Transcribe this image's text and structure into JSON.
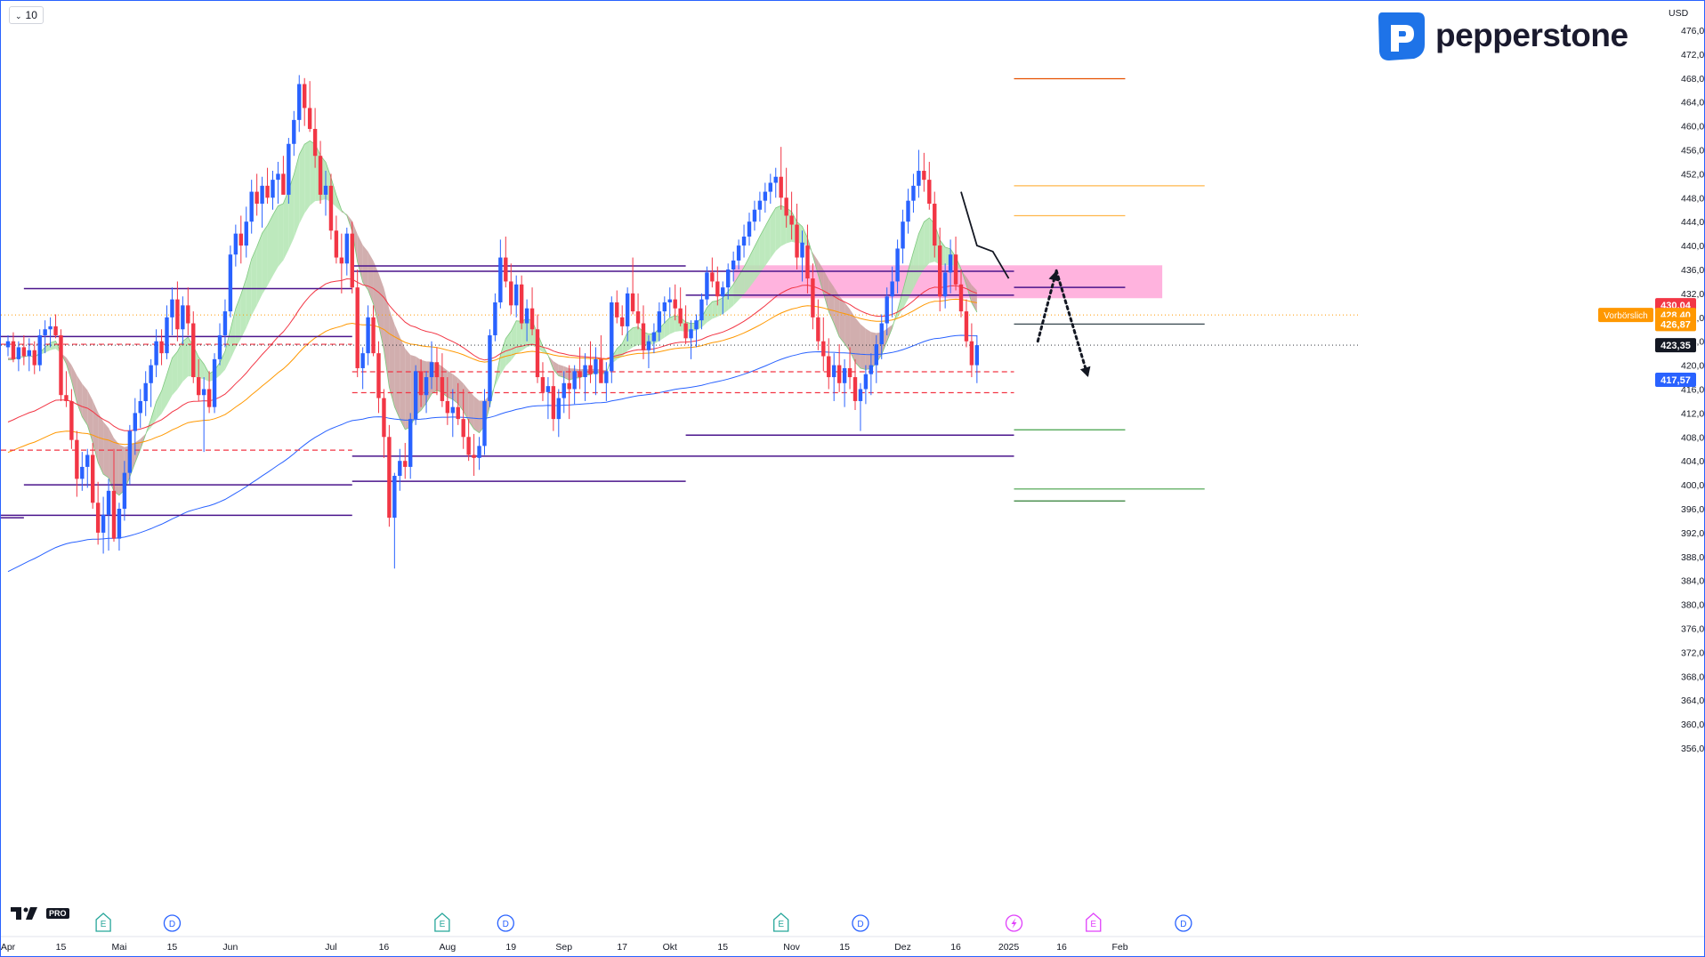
{
  "toolbar": {
    "interval_label": "10"
  },
  "brand": {
    "name": "pepperstone"
  },
  "watermark": {
    "name": "TV",
    "badge": "PRO"
  },
  "price_axis": {
    "currency": "USD",
    "range": [
      352,
      478
    ],
    "ticks": [
      "476,00",
      "472,00",
      "468,00",
      "464,00",
      "460,00",
      "456,00",
      "452,00",
      "448,00",
      "444,00",
      "440,00",
      "436,00",
      "432,00",
      "428,00",
      "424,00",
      "420,00",
      "416,00",
      "412,00",
      "408,00",
      "404,00",
      "400,00",
      "396,00",
      "392,00",
      "388,00",
      "384,00",
      "380,00",
      "376,00",
      "372,00",
      "368,00",
      "364,00",
      "360,00",
      "356,00"
    ]
  },
  "time_axis": {
    "labels": [
      {
        "text": "Apr",
        "i": 0
      },
      {
        "text": "15",
        "i": 10
      },
      {
        "text": "Mai",
        "i": 21
      },
      {
        "text": "15",
        "i": 31
      },
      {
        "text": "Jun",
        "i": 42
      },
      {
        "text": "Jul",
        "i": 61
      },
      {
        "text": "16",
        "i": 71
      },
      {
        "text": "Aug",
        "i": 83
      },
      {
        "text": "19",
        "i": 95
      },
      {
        "text": "Sep",
        "i": 105
      },
      {
        "text": "17",
        "i": 116
      },
      {
        "text": "Okt",
        "i": 125
      },
      {
        "text": "15",
        "i": 135
      },
      {
        "text": "Nov",
        "i": 148
      },
      {
        "text": "15",
        "i": 158
      },
      {
        "text": "Dez",
        "i": 169
      },
      {
        "text": "16",
        "i": 179
      },
      {
        "text": "2025",
        "i": 189
      },
      {
        "text": "16",
        "i": 199
      },
      {
        "text": "Feb",
        "i": 210
      }
    ],
    "events": [
      {
        "type": "E",
        "i": 18,
        "color": "#26a69a"
      },
      {
        "type": "D",
        "i": 31,
        "color": "#2962ff"
      },
      {
        "type": "E",
        "i": 82,
        "color": "#26a69a"
      },
      {
        "type": "D",
        "i": 94,
        "color": "#2962ff"
      },
      {
        "type": "E",
        "i": 146,
        "color": "#26a69a"
      },
      {
        "type": "D",
        "i": 161,
        "color": "#2962ff"
      },
      {
        "type": "bolt",
        "i": 190,
        "color": "#e040fb"
      },
      {
        "type": "E",
        "i": 205,
        "color": "#e040fb"
      },
      {
        "type": "D",
        "i": 222,
        "color": "#2962ff"
      }
    ]
  },
  "price_badges": [
    {
      "price": 430.04,
      "text": "430,04",
      "bg": "#f23645"
    },
    {
      "price": 428.4,
      "text": "428,40",
      "bg": "#ff9800",
      "label": "Vorbörslich"
    },
    {
      "price": 426.87,
      "text": "426,87",
      "bg": "#ff9800"
    },
    {
      "price": 423.35,
      "text": "423,35",
      "bg": "#131722"
    },
    {
      "price": 417.57,
      "text": "417,57",
      "bg": "#2962ff"
    }
  ],
  "colors": {
    "up": "#2962ff",
    "down": "#f23645",
    "ema_fast": "#f23645",
    "ema_mid": "#ff9800",
    "ema_slow": "#2962ff",
    "level": "#4a148c",
    "zone": "#ff80c8",
    "cloud_up": "#b2e5b2",
    "cloud_down": "#c9a0a0"
  },
  "annotations": {
    "levels": [
      {
        "price": 432.8,
        "i0": 3,
        "i1": 65
      },
      {
        "price": 424.8,
        "i0": -5,
        "i1": 65
      },
      {
        "price": 400.0,
        "i0": 3,
        "i1": 65
      },
      {
        "price": 394.9,
        "i0": -5,
        "i1": 65
      },
      {
        "price": 394.5,
        "i0": -5,
        "i1": 3
      },
      {
        "price": 436.6,
        "i0": 65,
        "i1": 128
      },
      {
        "price": 435.7,
        "i0": 65,
        "i1": 190
      },
      {
        "price": 404.8,
        "i0": 65,
        "i1": 190
      },
      {
        "price": 400.6,
        "i0": 65,
        "i1": 128
      },
      {
        "price": 431.7,
        "i0": 128,
        "i1": 190
      },
      {
        "price": 408.3,
        "i0": 128,
        "i1": 190
      },
      {
        "price": 433.0,
        "i0": 190,
        "i1": 211
      },
      {
        "price": 426.87,
        "i0": 190,
        "i1": 226
      }
    ],
    "dashed_levels": [
      {
        "price": 423.5,
        "i0": -5,
        "i1": 65
      },
      {
        "price": 405.8,
        "i0": -5,
        "i1": 65
      },
      {
        "price": 418.9,
        "i0": 65,
        "i1": 190
      },
      {
        "price": 415.4,
        "i0": 65,
        "i1": 190
      }
    ],
    "dotted_levels": [
      {
        "price": 428.4,
        "i0": -5,
        "i1": 226
      }
    ],
    "zone": {
      "p_top": 436.7,
      "p_bot": 431.2,
      "i0": 137,
      "i1": 218
    },
    "target_lines": [
      {
        "price": 467.9,
        "i0": 190,
        "i1": 211,
        "color": "#e65100"
      },
      {
        "price": 450.0,
        "i0": 190,
        "i1": 226,
        "color": "#ffb74d"
      },
      {
        "price": 445.0,
        "i0": 190,
        "i1": 211,
        "color": "#ffb74d"
      },
      {
        "price": 409.2,
        "i0": 190,
        "i1": 211,
        "color": "#43a047"
      },
      {
        "price": 399.3,
        "i0": 190,
        "i1": 226,
        "color": "#43a047"
      },
      {
        "price": 397.3,
        "i0": 190,
        "i1": 211,
        "color": "#2e7d32"
      }
    ],
    "projection": [
      [
        194.5,
        424.0
      ],
      [
        198.0,
        435.8
      ],
      [
        204.0,
        418.0
      ]
    ]
  },
  "chart_data": {
    "type": "candlestick",
    "title": "",
    "ylim": [
      352,
      478
    ],
    "candles": [
      [
        423.0,
        425.0,
        421.5,
        424.0
      ],
      [
        424.0,
        425.5,
        420.5,
        421.0
      ],
      [
        421.0,
        424.0,
        419.0,
        423.0
      ],
      [
        423.0,
        425.0,
        420.0,
        421.5
      ],
      [
        421.5,
        424.5,
        419.0,
        422.5
      ],
      [
        422.5,
        424.0,
        418.5,
        420.0
      ],
      [
        420.0,
        426.0,
        419.0,
        425.0
      ],
      [
        425.0,
        427.5,
        422.0,
        426.0
      ],
      [
        426.0,
        428.0,
        423.0,
        426.5
      ],
      [
        426.5,
        428.5,
        424.5,
        425.0
      ],
      [
        425.0,
        426.0,
        414.0,
        415.0
      ],
      [
        415.0,
        419.0,
        413.0,
        414.0
      ],
      [
        414.0,
        416.0,
        406.0,
        407.5
      ],
      [
        407.5,
        409.0,
        398.0,
        401.0
      ],
      [
        401.0,
        405.5,
        399.0,
        403.0
      ],
      [
        403.0,
        406.0,
        399.5,
        405.0
      ],
      [
        405.0,
        407.0,
        396.0,
        397.0
      ],
      [
        397.0,
        400.5,
        390.0,
        392.0
      ],
      [
        392.0,
        398.0,
        388.5,
        395.0
      ],
      [
        395.0,
        401.0,
        389.0,
        399.0
      ],
      [
        399.0,
        406.0,
        390.5,
        391.0
      ],
      [
        391.0,
        397.0,
        389.0,
        396.0
      ],
      [
        396.0,
        404.0,
        394.0,
        402.0
      ],
      [
        402.0,
        410.0,
        400.0,
        409.0
      ],
      [
        409.0,
        414.5,
        405.0,
        412.0
      ],
      [
        412.0,
        416.0,
        409.5,
        414.0
      ],
      [
        414.0,
        419.0,
        411.5,
        417.0
      ],
      [
        417.0,
        421.0,
        413.0,
        420.0
      ],
      [
        420.0,
        426.0,
        418.0,
        424.0
      ],
      [
        424.0,
        426.0,
        420.0,
        422.0
      ],
      [
        422.0,
        430.0,
        421.0,
        428.0
      ],
      [
        428.0,
        433.0,
        425.0,
        431.0
      ],
      [
        431.0,
        434.0,
        424.0,
        426.0
      ],
      [
        426.0,
        431.5,
        423.5,
        430.0
      ],
      [
        430.0,
        433.0,
        425.0,
        427.0
      ],
      [
        427.0,
        429.0,
        417.0,
        418.0
      ],
      [
        418.0,
        421.0,
        414.0,
        415.0
      ],
      [
        415.0,
        418.0,
        405.5,
        416.0
      ],
      [
        416.0,
        419.0,
        412.0,
        413.0
      ],
      [
        413.0,
        422.0,
        412.0,
        421.0
      ],
      [
        421.0,
        427.0,
        420.0,
        425.0
      ],
      [
        425.0,
        431.0,
        423.0,
        429.0
      ],
      [
        429.0,
        440.0,
        428.0,
        438.5
      ],
      [
        438.5,
        443.5,
        436.5,
        442.0
      ],
      [
        442.0,
        445.0,
        437.0,
        440.0
      ],
      [
        440.0,
        446.5,
        438.0,
        444.0
      ],
      [
        444.0,
        451.0,
        442.0,
        449.0
      ],
      [
        449.0,
        452.0,
        445.0,
        447.0
      ],
      [
        447.0,
        451.5,
        443.0,
        450.0
      ],
      [
        450.0,
        453.0,
        447.0,
        448.0
      ],
      [
        448.0,
        452.5,
        446.0,
        451.0
      ],
      [
        451.0,
        454.0,
        447.0,
        452.0
      ],
      [
        452.0,
        455.0,
        449.0,
        448.5
      ],
      [
        448.5,
        458.0,
        447.0,
        457.0
      ],
      [
        457.0,
        462.5,
        455.0,
        461.0
      ],
      [
        461.0,
        468.5,
        459.0,
        467.0
      ],
      [
        467.0,
        468.0,
        460.0,
        463.0
      ],
      [
        463.0,
        467.5,
        459.0,
        459.5
      ],
      [
        459.5,
        463.0,
        453.0,
        455.0
      ],
      [
        455.0,
        457.5,
        447.0,
        448.5
      ],
      [
        448.5,
        452.5,
        445.0,
        450.0
      ],
      [
        450.0,
        452.0,
        441.0,
        442.5
      ],
      [
        442.5,
        445.0,
        437.0,
        438.0
      ],
      [
        438.0,
        442.0,
        432.0,
        437.0
      ],
      [
        437.0,
        443.0,
        435.0,
        442.0
      ],
      [
        442.0,
        444.0,
        432.0,
        433.0
      ],
      [
        433.0,
        436.0,
        418.0,
        419.5
      ],
      [
        419.5,
        423.0,
        416.0,
        422.0
      ],
      [
        422.0,
        430.0,
        420.0,
        428.0
      ],
      [
        428.0,
        430.0,
        421.5,
        422.0
      ],
      [
        422.0,
        424.0,
        412.0,
        414.5
      ],
      [
        414.5,
        416.0,
        404.5,
        408.0
      ],
      [
        408.0,
        410.0,
        393.0,
        394.5
      ],
      [
        394.5,
        402.0,
        386.0,
        401.5
      ],
      [
        401.5,
        406.0,
        399.0,
        404.0
      ],
      [
        404.0,
        407.0,
        401.0,
        403.0
      ],
      [
        403.0,
        412.0,
        401.0,
        411.0
      ],
      [
        411.0,
        420.0,
        410.0,
        419.0
      ],
      [
        419.0,
        421.0,
        413.0,
        415.0
      ],
      [
        415.0,
        419.0,
        412.0,
        418.0
      ],
      [
        418.0,
        424.0,
        416.0,
        420.5
      ],
      [
        420.5,
        423.0,
        415.0,
        418.0
      ],
      [
        418.0,
        422.0,
        413.0,
        414.0
      ],
      [
        414.0,
        418.0,
        410.0,
        412.0
      ],
      [
        412.0,
        416.0,
        408.0,
        413.0
      ],
      [
        413.0,
        417.0,
        410.0,
        411.0
      ],
      [
        411.0,
        416.0,
        406.0,
        408.0
      ],
      [
        408.0,
        411.0,
        404.0,
        405.0
      ],
      [
        405.0,
        408.5,
        401.5,
        404.5
      ],
      [
        404.5,
        408.0,
        402.5,
        406.5
      ],
      [
        406.5,
        416.0,
        405.0,
        414.0
      ],
      [
        414.0,
        426.0,
        413.0,
        425.0
      ],
      [
        425.0,
        432.0,
        424.0,
        430.5
      ],
      [
        430.5,
        441.0,
        429.5,
        438.0
      ],
      [
        438.0,
        441.5,
        433.0,
        434.0
      ],
      [
        434.0,
        437.0,
        428.5,
        430.0
      ],
      [
        430.0,
        435.0,
        428.0,
        433.5
      ],
      [
        433.5,
        435.0,
        426.0,
        427.0
      ],
      [
        427.0,
        431.0,
        424.0,
        429.5
      ],
      [
        429.5,
        433.0,
        425.0,
        426.0
      ],
      [
        426.0,
        428.5,
        417.0,
        418.0
      ],
      [
        418.0,
        420.5,
        414.0,
        415.5
      ],
      [
        415.5,
        418.0,
        411.0,
        416.5
      ],
      [
        416.5,
        419.0,
        409.0,
        411.0
      ],
      [
        411.0,
        416.0,
        408.0,
        414.5
      ],
      [
        414.5,
        419.0,
        412.0,
        417.0
      ],
      [
        417.0,
        420.0,
        411.0,
        416.0
      ],
      [
        416.0,
        420.0,
        413.5,
        419.0
      ],
      [
        419.0,
        423.0,
        416.0,
        418.0
      ],
      [
        418.0,
        422.0,
        414.0,
        420.0
      ],
      [
        420.0,
        424.0,
        417.0,
        418.5
      ],
      [
        418.5,
        423.0,
        415.0,
        421.0
      ],
      [
        421.0,
        425.0,
        418.0,
        417.0
      ],
      [
        417.0,
        420.5,
        414.0,
        419.0
      ],
      [
        419.0,
        431.5,
        417.0,
        430.5
      ],
      [
        430.5,
        432.5,
        427.0,
        428.0
      ],
      [
        428.0,
        430.0,
        425.0,
        426.5
      ],
      [
        426.5,
        433.0,
        424.0,
        432.0
      ],
      [
        432.0,
        438.0,
        428.5,
        429.0
      ],
      [
        429.0,
        432.0,
        426.0,
        427.0
      ],
      [
        427.0,
        430.0,
        421.0,
        422.5
      ],
      [
        422.5,
        425.0,
        419.5,
        424.0
      ],
      [
        424.0,
        427.0,
        422.0,
        425.5
      ],
      [
        425.5,
        430.5,
        424.0,
        429.0
      ],
      [
        429.0,
        431.5,
        427.0,
        430.5
      ],
      [
        430.5,
        433.0,
        428.0,
        431.0
      ],
      [
        431.0,
        433.5,
        427.5,
        429.5
      ],
      [
        429.5,
        433.0,
        426.5,
        427.0
      ],
      [
        427.0,
        430.0,
        423.5,
        424.5
      ],
      [
        424.5,
        427.5,
        421.0,
        426.0
      ],
      [
        426.0,
        428.5,
        423.0,
        427.5
      ],
      [
        427.5,
        432.0,
        426.0,
        431.0
      ],
      [
        431.0,
        436.5,
        430.0,
        435.5
      ],
      [
        435.5,
        438.0,
        433.0,
        434.0
      ],
      [
        434.0,
        436.5,
        430.0,
        431.5
      ],
      [
        431.5,
        434.0,
        428.5,
        433.0
      ],
      [
        433.0,
        437.0,
        431.0,
        436.0
      ],
      [
        436.0,
        439.0,
        434.0,
        437.5
      ],
      [
        437.5,
        441.0,
        436.0,
        440.0
      ],
      [
        440.0,
        443.5,
        438.0,
        441.5
      ],
      [
        441.5,
        445.5,
        440.0,
        444.0
      ],
      [
        444.0,
        447.5,
        442.5,
        446.0
      ],
      [
        446.0,
        449.0,
        444.0,
        447.5
      ],
      [
        447.5,
        450.5,
        445.5,
        449.0
      ],
      [
        449.0,
        452.0,
        447.0,
        450.5
      ],
      [
        450.5,
        453.0,
        448.0,
        451.5
      ],
      [
        451.5,
        456.5,
        446.0,
        448.0
      ],
      [
        448.0,
        453.0,
        443.0,
        445.0
      ],
      [
        445.0,
        449.0,
        441.0,
        443.5
      ],
      [
        443.5,
        447.0,
        436.0,
        438.0
      ],
      [
        438.0,
        442.5,
        434.0,
        440.5
      ],
      [
        440.0,
        443.5,
        432.0,
        434.5
      ],
      [
        434.5,
        437.0,
        426.0,
        428.0
      ],
      [
        428.0,
        431.0,
        422.5,
        424.0
      ],
      [
        424.0,
        428.0,
        419.0,
        421.5
      ],
      [
        421.5,
        424.5,
        416.0,
        418.0
      ],
      [
        418.0,
        422.0,
        414.0,
        420.0
      ],
      [
        420.0,
        423.5,
        415.5,
        417.0
      ],
      [
        417.0,
        421.0,
        413.0,
        419.5
      ],
      [
        419.5,
        423.0,
        416.0,
        418.0
      ],
      [
        418.0,
        421.0,
        412.5,
        414.0
      ],
      [
        414.0,
        417.0,
        409.0,
        416.0
      ],
      [
        416.0,
        420.0,
        413.5,
        418.5
      ],
      [
        418.5,
        422.0,
        415.0,
        420.0
      ],
      [
        420.0,
        425.0,
        417.0,
        423.5
      ],
      [
        423.5,
        428.5,
        421.0,
        427.0
      ],
      [
        427.0,
        433.0,
        425.0,
        431.5
      ],
      [
        431.5,
        436.5,
        428.0,
        434.0
      ],
      [
        434.0,
        441.0,
        432.0,
        439.5
      ],
      [
        439.5,
        446.0,
        437.0,
        444.0
      ],
      [
        444.0,
        449.5,
        442.0,
        447.5
      ],
      [
        447.5,
        452.0,
        445.5,
        450.0
      ],
      [
        450.0,
        456.0,
        448.0,
        452.5
      ],
      [
        452.5,
        455.5,
        449.0,
        451.0
      ],
      [
        451.0,
        454.0,
        446.0,
        447.0
      ],
      [
        447.0,
        449.0,
        438.0,
        440.0
      ],
      [
        440.0,
        443.0,
        429.0,
        431.5
      ],
      [
        431.5,
        437.0,
        429.5,
        435.5
      ],
      [
        435.5,
        441.0,
        432.0,
        438.5
      ],
      [
        438.5,
        441.5,
        432.5,
        433.5
      ],
      [
        433.5,
        436.0,
        428.0,
        429.0
      ],
      [
        429.0,
        431.0,
        423.0,
        424.0
      ],
      [
        424.0,
        427.0,
        418.0,
        420.0
      ],
      [
        420.0,
        425.0,
        417.0,
        423.35
      ]
    ],
    "ema_fast": [],
    "ema_mid": [],
    "ema_slow": []
  }
}
